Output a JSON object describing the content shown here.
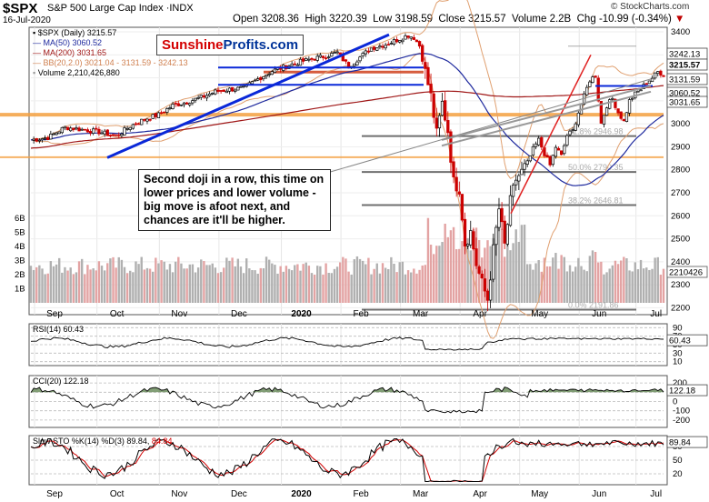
{
  "header": {
    "symbol": "$SPX",
    "name": "S&P 500 Large Cap Index",
    "exchange": "INDX",
    "date": "16-Jul-2020",
    "open_label": "Open",
    "open": "3208.36",
    "high_label": "High",
    "high": "3220.39",
    "low_label": "Low",
    "low": "3198.59",
    "close_label": "Close",
    "close": "3215.57",
    "volume_label": "Volume",
    "volume": "2.2B",
    "chg_label": "Chg",
    "chg": "-10.99 (-0.34%)",
    "chg_arrow": "▼",
    "copyright": "© StockCharts.com"
  },
  "brand": {
    "part1": "Sunshine",
    "part2": "Profits.com",
    "color1": "#d40000",
    "color2": "#003399"
  },
  "legend": {
    "main": "$SPX (Daily) 3215.57",
    "ma50": "MA(50) 3060.52",
    "ma200": "MA(200) 3031.65",
    "bb": "BB(20,2.0) 3021.04 - 3131.59 - 3242.13",
    "volume": "Volume 2,210,426,880"
  },
  "colors": {
    "up": "#000000",
    "down": "#cc0000",
    "ma50": "#1f2a9e",
    "ma200": "#a01818",
    "bb": "#e0a070",
    "trend_blue": "#0a28d8",
    "trend_red": "#e02020",
    "orange_band": "#f4a040",
    "vol_up": "#b0b0b0",
    "vol_down": "#e3a3a3",
    "fib": "#888888",
    "rsi_fill": "#5a7f4a",
    "cci_neg": "#8a5a50"
  },
  "annotation": "Second doji in a row, this time on lower prices and lower volume - big move is afoot next, and chances are it'll be higher.",
  "fib_labels": {
    "f618": "61.8% 2946.98",
    "f50": "50.0% 2790.35",
    "f382": "38.2% 2646.81",
    "f0": "0.0% 2191.86"
  },
  "price_axis": {
    "ticks": [
      "3400",
      "3300",
      "3200",
      "3100",
      "3000",
      "2900",
      "2800",
      "2700",
      "2600",
      "2500",
      "2400",
      "2300",
      "2200"
    ],
    "tags": [
      {
        "label": "3242.13",
        "bg": "#ffffff",
        "fg": "#000"
      },
      {
        "label": "3215.57",
        "bg": "#ffffff",
        "fg": "#000"
      },
      {
        "label": "3131.59",
        "bg": "#ffffff",
        "fg": "#000"
      },
      {
        "label": "3060.52",
        "bg": "#ffffff",
        "fg": "#000"
      },
      {
        "label": "3031.65",
        "bg": "#ffffff",
        "fg": "#000"
      }
    ],
    "volume_ticks": [
      "6B",
      "5B",
      "4B",
      "3B",
      "2B",
      "1B"
    ],
    "volume_tag": "2210426"
  },
  "months": [
    "Sep",
    "Oct",
    "Nov",
    "Dec",
    "2020",
    "Feb",
    "Mar",
    "Apr",
    "May",
    "Jun",
    "Jul"
  ],
  "rsi": {
    "label": "RSI(14) 60.43",
    "ticks": [
      "90",
      "70",
      "50",
      "30",
      "10"
    ],
    "tag": "60.43"
  },
  "cci": {
    "label": "CCI(20) 122.18",
    "ticks": [
      "200",
      "100",
      "0",
      "-100",
      "-200"
    ],
    "tag": "122.18"
  },
  "sto": {
    "label_prefix": "Slow STO %K(14) %D(3)",
    "k": "89.84",
    "d": "84.84",
    "ticks": [
      "80",
      "50",
      "20"
    ],
    "tag": "89.84"
  },
  "chart_data": {
    "type": "candlestick",
    "title": "$SPX S&P 500 Large Cap Index INDX",
    "ylim": [
      2170,
      3420
    ],
    "x_labels": [
      "Sep",
      "Oct",
      "Nov",
      "Dec",
      "2020",
      "Feb",
      "Mar",
      "Apr",
      "May",
      "Jun",
      "Jul"
    ],
    "close_path": [
      {
        "t": 0,
        "v": 2930
      },
      {
        "t": 6,
        "v": 2940
      },
      {
        "t": 12,
        "v": 2985
      },
      {
        "t": 18,
        "v": 2975
      },
      {
        "t": 24,
        "v": 2965
      },
      {
        "t": 30,
        "v": 2945
      },
      {
        "t": 35,
        "v": 2990
      },
      {
        "t": 40,
        "v": 3020
      },
      {
        "t": 45,
        "v": 3040
      },
      {
        "t": 50,
        "v": 3080
      },
      {
        "t": 55,
        "v": 3095
      },
      {
        "t": 60,
        "v": 3115
      },
      {
        "t": 65,
        "v": 3140
      },
      {
        "t": 70,
        "v": 3150
      },
      {
        "t": 75,
        "v": 3155
      },
      {
        "t": 80,
        "v": 3195
      },
      {
        "t": 85,
        "v": 3230
      },
      {
        "t": 90,
        "v": 3250
      },
      {
        "t": 95,
        "v": 3270
      },
      {
        "t": 100,
        "v": 3285
      },
      {
        "t": 104,
        "v": 3295
      },
      {
        "t": 108,
        "v": 3310
      },
      {
        "t": 112,
        "v": 3250
      },
      {
        "t": 116,
        "v": 3290
      },
      {
        "t": 120,
        "v": 3330
      },
      {
        "t": 125,
        "v": 3345
      },
      {
        "t": 130,
        "v": 3370
      },
      {
        "t": 133,
        "v": 3385
      },
      {
        "t": 135,
        "v": 3375
      },
      {
        "t": 137,
        "v": 3340
      },
      {
        "t": 139,
        "v": 3225
      },
      {
        "t": 141,
        "v": 3120
      },
      {
        "t": 143,
        "v": 2955
      },
      {
        "t": 145,
        "v": 3090
      },
      {
        "t": 147,
        "v": 2970
      },
      {
        "t": 149,
        "v": 2746
      },
      {
        "t": 151,
        "v": 2720
      },
      {
        "t": 153,
        "v": 2480
      },
      {
        "t": 155,
        "v": 2530
      },
      {
        "t": 157,
        "v": 2390
      },
      {
        "t": 159,
        "v": 2305
      },
      {
        "t": 161,
        "v": 2237
      },
      {
        "t": 163,
        "v": 2450
      },
      {
        "t": 165,
        "v": 2630
      },
      {
        "t": 167,
        "v": 2470
      },
      {
        "t": 169,
        "v": 2660
      },
      {
        "t": 171,
        "v": 2760
      },
      {
        "t": 173,
        "v": 2790
      },
      {
        "t": 175,
        "v": 2830
      },
      {
        "t": 177,
        "v": 2890
      },
      {
        "t": 179,
        "v": 2930
      },
      {
        "t": 181,
        "v": 2870
      },
      {
        "t": 183,
        "v": 2820
      },
      {
        "t": 185,
        "v": 2900
      },
      {
        "t": 187,
        "v": 2860
      },
      {
        "t": 189,
        "v": 2950
      },
      {
        "t": 191,
        "v": 2970
      },
      {
        "t": 193,
        "v": 3050
      },
      {
        "t": 195,
        "v": 3120
      },
      {
        "t": 197,
        "v": 3190
      },
      {
        "t": 199,
        "v": 3210
      },
      {
        "t": 201,
        "v": 3002
      },
      {
        "t": 203,
        "v": 3080
      },
      {
        "t": 205,
        "v": 3110
      },
      {
        "t": 207,
        "v": 3050
      },
      {
        "t": 209,
        "v": 3010
      },
      {
        "t": 211,
        "v": 3100
      },
      {
        "t": 213,
        "v": 3130
      },
      {
        "t": 215,
        "v": 3150
      },
      {
        "t": 217,
        "v": 3180
      },
      {
        "t": 219,
        "v": 3200
      },
      {
        "t": 221,
        "v": 3226
      },
      {
        "t": 223,
        "v": 3215
      }
    ]
  }
}
